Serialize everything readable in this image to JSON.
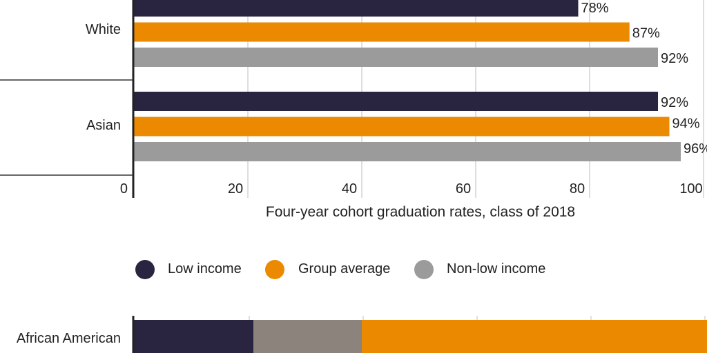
{
  "chart_data": [
    {
      "type": "bar",
      "orientation": "horizontal",
      "categories": [
        "White",
        "Asian"
      ],
      "series": [
        {
          "name": "Low income",
          "values": [
            78,
            92
          ]
        },
        {
          "name": "Group average",
          "values": [
            87,
            94
          ]
        },
        {
          "name": "Non-low income",
          "values": [
            92,
            96
          ]
        }
      ],
      "data_labels": [
        [
          "78%",
          "92%"
        ],
        [
          "87%",
          "94%"
        ],
        [
          "92%",
          "96%"
        ]
      ],
      "xlabel": "Four-year cohort graduation rates, class of 2018",
      "xticks": [
        "0",
        "20",
        "40",
        "60",
        "80",
        "100"
      ],
      "xlim": [
        0,
        100
      ],
      "grid": true,
      "legend": {
        "placement": "bottom",
        "entries": [
          "Low income",
          "Group average",
          "Non-low income"
        ]
      },
      "colors": [
        "#29243f",
        "#eb8a00",
        "#9b9b9b"
      ]
    },
    {
      "type": "bar",
      "orientation": "horizontal",
      "stacked": true,
      "categories": [
        "African American"
      ],
      "series": [
        {
          "values": [
            21
          ]
        },
        {
          "values": [
            19
          ]
        },
        {
          "values": [
            60
          ]
        }
      ],
      "xlim": [
        0,
        100
      ],
      "grid": true,
      "colors": [
        "#29243f",
        "#8b837c",
        "#eb8a00"
      ]
    }
  ]
}
